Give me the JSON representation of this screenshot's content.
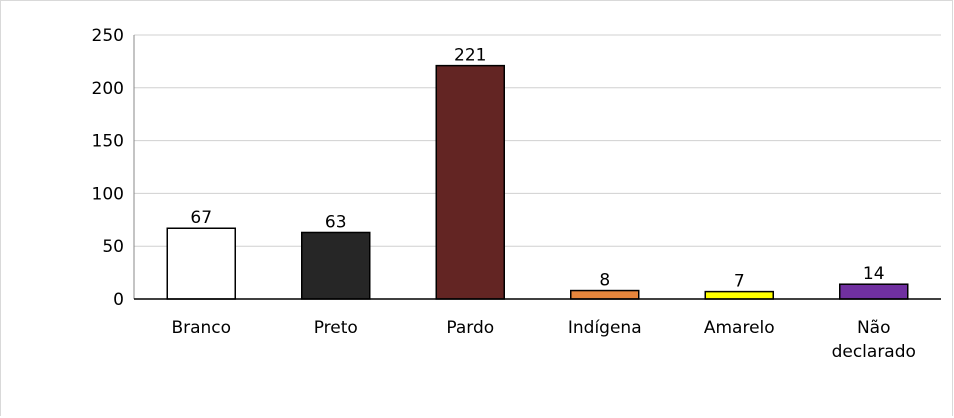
{
  "chart_data": {
    "type": "bar",
    "categories": [
      "Branco",
      "Preto",
      "Pardo",
      "Indígena",
      "Amarelo",
      "Não declarado"
    ],
    "category_lines": [
      [
        "Branco"
      ],
      [
        "Preto"
      ],
      [
        "Pardo"
      ],
      [
        "Indígena"
      ],
      [
        "Amarelo"
      ],
      [
        "Não",
        "declarado"
      ]
    ],
    "values": [
      67,
      63,
      221,
      8,
      7,
      14
    ],
    "colors": [
      "#ffffff",
      "#262626",
      "#632523",
      "#e6853c",
      "#ffff00",
      "#7030a0"
    ],
    "ylim": [
      0,
      250
    ],
    "yticks": [
      0,
      50,
      100,
      150,
      200,
      250
    ],
    "grid": true,
    "legend": "none",
    "title": "",
    "xlabel": "",
    "ylabel": ""
  }
}
